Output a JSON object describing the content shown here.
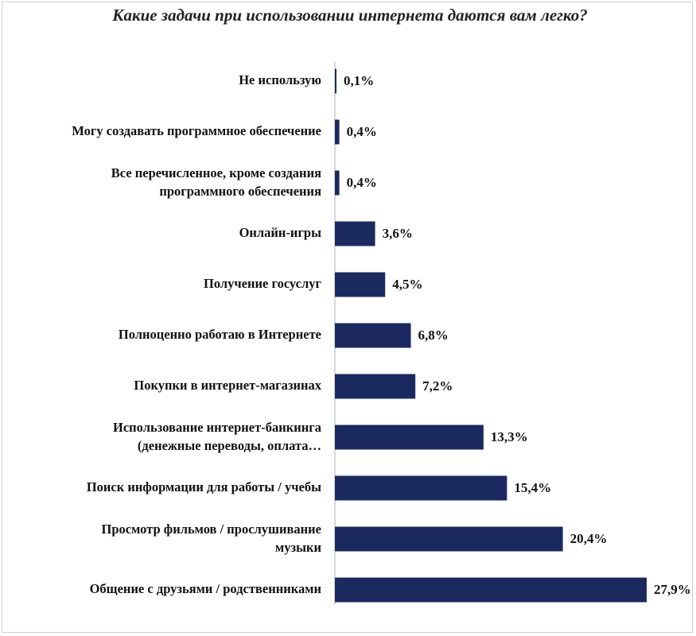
{
  "chart_data": {
    "type": "bar",
    "orientation": "horizontal",
    "title": "Какие задачи при использовании интернета даются вам легко?",
    "categories": [
      [
        "Не использую"
      ],
      [
        "Могу создавать программное обеспечение"
      ],
      [
        "Все перечисленное, кроме создания",
        "программного обеспечения"
      ],
      [
        "Онлайн-игры"
      ],
      [
        "Получение госуслуг"
      ],
      [
        "Полноценно работаю в Интернете"
      ],
      [
        "Покупки в интернет-магазинах"
      ],
      [
        "Использование интернет-банкинга",
        "(денежные переводы, оплата…"
      ],
      [
        "Поиск информации для работы / учебы"
      ],
      [
        "Просмотр фильмов / прослушивание",
        "музыки"
      ],
      [
        "Общение с друзьями / родственниками"
      ]
    ],
    "values": [
      0.1,
      0.4,
      0.4,
      3.6,
      4.5,
      6.8,
      7.2,
      13.3,
      15.4,
      20.4,
      27.9
    ],
    "value_labels": [
      "0,1%",
      "0,4%",
      "0,4%",
      "3,6%",
      "4,5%",
      "6,8%",
      "7,2%",
      "13,3%",
      "15,4%",
      "20,4%",
      "27,9%"
    ],
    "bar_color": "#1b2a5e",
    "axis_color": "#b0b0b0",
    "xlim": [
      0,
      28
    ],
    "grid": false,
    "legend": "none"
  }
}
